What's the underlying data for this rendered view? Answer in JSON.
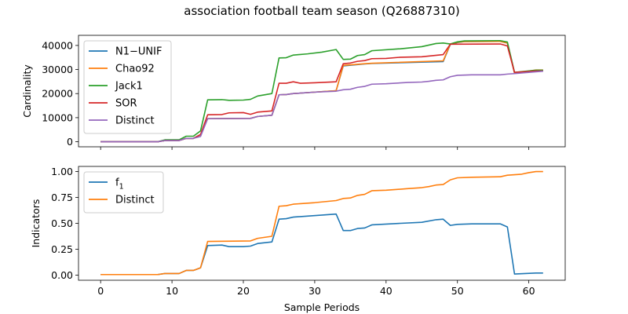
{
  "title": "association football team season (Q26887310)",
  "chart_data": [
    {
      "type": "line",
      "ylabel": "Cardinality",
      "xlabel": "",
      "xlim": [
        -3.1,
        65.1
      ],
      "ylim": [
        -2100,
        44200
      ],
      "xticks": [
        0,
        10,
        20,
        30,
        40,
        50,
        60
      ],
      "yticks": [
        0,
        10000,
        20000,
        30000,
        40000
      ],
      "ytick_labels": [
        "0",
        "10000",
        "20000",
        "30000",
        "40000"
      ],
      "show_xtick_labels": false,
      "legend_position": "upper-left",
      "series": [
        {
          "name": "N1−UNIF",
          "color": "#1f77b4",
          "points": [
            [
              0,
              0
            ],
            [
              8,
              0
            ],
            [
              9,
              500
            ],
            [
              11,
              500
            ],
            [
              12,
              1400
            ],
            [
              13,
              1400
            ],
            [
              14,
              3000
            ],
            [
              15,
              9600
            ],
            [
              21,
              9700
            ],
            [
              22,
              10500
            ],
            [
              24,
              11000
            ],
            [
              25,
              19500
            ],
            [
              26,
              19600
            ],
            [
              27,
              20000
            ],
            [
              33,
              21200
            ],
            [
              34,
              31500
            ],
            [
              37,
              32300
            ],
            [
              38,
              32500
            ],
            [
              48,
              33300
            ],
            [
              49,
              40400
            ],
            [
              50,
              41200
            ],
            [
              51,
              41600
            ],
            [
              56,
              41700
            ],
            [
              57,
              41000
            ],
            [
              58,
              28500
            ],
            [
              61,
              29500
            ],
            [
              62,
              29500
            ]
          ]
        },
        {
          "name": "Chao92",
          "color": "#ff7f0e",
          "points": [
            [
              0,
              0
            ],
            [
              8,
              0
            ],
            [
              9,
              500
            ],
            [
              11,
              500
            ],
            [
              12,
              1400
            ],
            [
              13,
              1400
            ],
            [
              14,
              3000
            ],
            [
              15,
              9600
            ],
            [
              21,
              9700
            ],
            [
              22,
              10500
            ],
            [
              24,
              11000
            ],
            [
              25,
              19500
            ],
            [
              26,
              19600
            ],
            [
              27,
              20000
            ],
            [
              33,
              21200
            ],
            [
              34,
              31700
            ],
            [
              37,
              32400
            ],
            [
              38,
              32600
            ],
            [
              48,
              33600
            ],
            [
              49,
              40600
            ],
            [
              50,
              41300
            ],
            [
              51,
              41600
            ],
            [
              56,
              41700
            ],
            [
              57,
              41000
            ],
            [
              58,
              28500
            ],
            [
              61,
              29800
            ],
            [
              62,
              29800
            ]
          ]
        },
        {
          "name": "Jack1",
          "color": "#2ca02c",
          "points": [
            [
              0,
              0
            ],
            [
              8,
              0
            ],
            [
              9,
              800
            ],
            [
              11,
              800
            ],
            [
              12,
              2300
            ],
            [
              13,
              2300
            ],
            [
              14,
              4500
            ],
            [
              15,
              17400
            ],
            [
              17,
              17500
            ],
            [
              18,
              17200
            ],
            [
              20,
              17300
            ],
            [
              21,
              17600
            ],
            [
              22,
              19000
            ],
            [
              24,
              20000
            ],
            [
              25,
              34800
            ],
            [
              26,
              34900
            ],
            [
              27,
              36000
            ],
            [
              29,
              36500
            ],
            [
              31,
              37200
            ],
            [
              33,
              38300
            ],
            [
              34,
              34200
            ],
            [
              35,
              34300
            ],
            [
              36,
              35800
            ],
            [
              37,
              36200
            ],
            [
              38,
              37800
            ],
            [
              42,
              38600
            ],
            [
              45,
              39500
            ],
            [
              47,
              40800
            ],
            [
              48,
              41000
            ],
            [
              49,
              40600
            ],
            [
              50,
              41500
            ],
            [
              51,
              41900
            ],
            [
              56,
              42000
            ],
            [
              57,
              41400
            ],
            [
              58,
              28800
            ],
            [
              61,
              29700
            ],
            [
              62,
              29700
            ]
          ]
        },
        {
          "name": "SOR",
          "color": "#d62728",
          "points": [
            [
              0,
              0
            ],
            [
              8,
              0
            ],
            [
              9,
              500
            ],
            [
              11,
              500
            ],
            [
              12,
              1400
            ],
            [
              13,
              1400
            ],
            [
              14,
              3000
            ],
            [
              15,
              11200
            ],
            [
              17,
              11300
            ],
            [
              18,
              12000
            ],
            [
              20,
              12100
            ],
            [
              21,
              11400
            ],
            [
              22,
              12300
            ],
            [
              24,
              12800
            ],
            [
              25,
              24300
            ],
            [
              26,
              24300
            ],
            [
              27,
              24900
            ],
            [
              28,
              24300
            ],
            [
              30,
              24500
            ],
            [
              33,
              24900
            ],
            [
              34,
              32400
            ],
            [
              35,
              32700
            ],
            [
              36,
              33400
            ],
            [
              37,
              33700
            ],
            [
              38,
              34500
            ],
            [
              40,
              34600
            ],
            [
              42,
              35100
            ],
            [
              45,
              35300
            ],
            [
              48,
              36200
            ],
            [
              49,
              40500
            ],
            [
              56,
              40600
            ],
            [
              57,
              39800
            ],
            [
              58,
              28800
            ],
            [
              61,
              29400
            ],
            [
              62,
              29400
            ]
          ]
        },
        {
          "name": "Distinct",
          "color": "#9467bd",
          "points": [
            [
              0,
              0
            ],
            [
              8,
              0
            ],
            [
              9,
              500
            ],
            [
              11,
              500
            ],
            [
              12,
              1400
            ],
            [
              13,
              1400
            ],
            [
              14,
              2200
            ],
            [
              15,
              9600
            ],
            [
              21,
              9700
            ],
            [
              22,
              10500
            ],
            [
              24,
              11000
            ],
            [
              25,
              19500
            ],
            [
              26,
              19600
            ],
            [
              27,
              20000
            ],
            [
              30,
              20600
            ],
            [
              33,
              21000
            ],
            [
              34,
              21600
            ],
            [
              35,
              21800
            ],
            [
              36,
              22600
            ],
            [
              37,
              23000
            ],
            [
              38,
              23900
            ],
            [
              40,
              24100
            ],
            [
              43,
              24600
            ],
            [
              45,
              24800
            ],
            [
              46,
              25100
            ],
            [
              47,
              25500
            ],
            [
              48,
              25700
            ],
            [
              49,
              27000
            ],
            [
              50,
              27600
            ],
            [
              52,
              27800
            ],
            [
              56,
              27800
            ],
            [
              57,
              28100
            ],
            [
              58,
              28300
            ],
            [
              60,
              28800
            ],
            [
              62,
              29300
            ]
          ]
        }
      ]
    },
    {
      "type": "line",
      "ylabel": "Indicators",
      "xlabel": "Sample Periods",
      "xlim": [
        -3.1,
        65.1
      ],
      "ylim": [
        -0.05,
        1.05
      ],
      "xticks": [
        0,
        10,
        20,
        30,
        40,
        50,
        60
      ],
      "xtick_labels": [
        "0",
        "10",
        "20",
        "30",
        "40",
        "50",
        "60"
      ],
      "yticks": [
        0,
        0.25,
        0.5,
        0.75,
        1.0
      ],
      "ytick_labels": [
        "0.00",
        "0.25",
        "0.50",
        "0.75",
        "1.00"
      ],
      "legend_position": "upper-left",
      "series": [
        {
          "name": "f",
          "name_subscript": "1",
          "color": "#1f77b4",
          "points": [
            [
              0,
              0.005
            ],
            [
              8,
              0.005
            ],
            [
              9,
              0.015
            ],
            [
              11,
              0.015
            ],
            [
              12,
              0.045
            ],
            [
              13,
              0.045
            ],
            [
              14,
              0.07
            ],
            [
              15,
              0.285
            ],
            [
              17,
              0.29
            ],
            [
              18,
              0.275
            ],
            [
              20,
              0.275
            ],
            [
              21,
              0.28
            ],
            [
              22,
              0.305
            ],
            [
              24,
              0.32
            ],
            [
              25,
              0.54
            ],
            [
              26,
              0.545
            ],
            [
              27,
              0.56
            ],
            [
              33,
              0.59
            ],
            [
              34,
              0.43
            ],
            [
              35,
              0.43
            ],
            [
              36,
              0.45
            ],
            [
              37,
              0.455
            ],
            [
              38,
              0.485
            ],
            [
              42,
              0.5
            ],
            [
              45,
              0.51
            ],
            [
              47,
              0.535
            ],
            [
              48,
              0.54
            ],
            [
              49,
              0.48
            ],
            [
              50,
              0.49
            ],
            [
              52,
              0.495
            ],
            [
              56,
              0.495
            ],
            [
              57,
              0.465
            ],
            [
              58,
              0.01
            ],
            [
              61,
              0.02
            ],
            [
              62,
              0.02
            ]
          ]
        },
        {
          "name": "Distinct",
          "name_subscript": "",
          "color": "#ff7f0e",
          "points": [
            [
              0,
              0.005
            ],
            [
              8,
              0.005
            ],
            [
              9,
              0.015
            ],
            [
              11,
              0.015
            ],
            [
              12,
              0.045
            ],
            [
              13,
              0.045
            ],
            [
              14,
              0.07
            ],
            [
              15,
              0.325
            ],
            [
              21,
              0.33
            ],
            [
              22,
              0.355
            ],
            [
              24,
              0.375
            ],
            [
              25,
              0.665
            ],
            [
              26,
              0.67
            ],
            [
              27,
              0.685
            ],
            [
              30,
              0.7
            ],
            [
              33,
              0.72
            ],
            [
              34,
              0.74
            ],
            [
              35,
              0.745
            ],
            [
              36,
              0.77
            ],
            [
              37,
              0.78
            ],
            [
              38,
              0.815
            ],
            [
              40,
              0.82
            ],
            [
              43,
              0.835
            ],
            [
              45,
              0.845
            ],
            [
              46,
              0.855
            ],
            [
              47,
              0.87
            ],
            [
              48,
              0.875
            ],
            [
              49,
              0.92
            ],
            [
              50,
              0.94
            ],
            [
              52,
              0.945
            ],
            [
              56,
              0.95
            ],
            [
              57,
              0.965
            ],
            [
              59,
              0.975
            ],
            [
              60,
              0.99
            ],
            [
              61,
              1.0
            ],
            [
              62,
              1.0
            ]
          ]
        }
      ]
    }
  ]
}
